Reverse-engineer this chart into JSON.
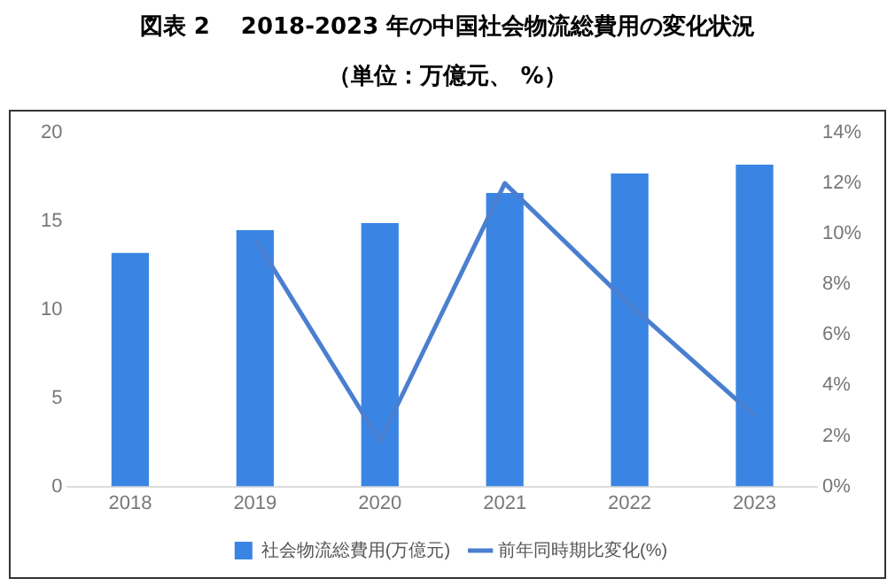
{
  "chart_data": {
    "type": "bar",
    "title": "図表 2　 2018-2023 年の中国社会物流総費用の変化状況",
    "subtitle": "（単位：万億元、 %）",
    "categories": [
      "2018",
      "2019",
      "2020",
      "2021",
      "2022",
      "2023"
    ],
    "series": [
      {
        "name": "社会物流総費用(万億元)",
        "color": "#3a85e3",
        "values": [
          13.2,
          14.5,
          14.9,
          16.6,
          17.7,
          18.2
        ]
      },
      {
        "name": "前年同時期比変化(%)",
        "type": "line",
        "axis": "y2",
        "color": "#4a7fd0",
        "values": [
          null,
          9.8,
          1.8,
          12.0,
          7.2,
          2.8
        ]
      }
    ],
    "ylim": [
      0,
      20
    ],
    "yticks": [
      0,
      5,
      10,
      15,
      20
    ],
    "y2lim": [
      0,
      14
    ],
    "y2ticks": [
      {
        "value": 0,
        "label": "0%"
      },
      {
        "value": 2,
        "label": "2%"
      },
      {
        "value": 4,
        "label": "4%"
      },
      {
        "value": 6,
        "label": "6%"
      },
      {
        "value": 8,
        "label": "8%"
      },
      {
        "value": 10,
        "label": "10%"
      },
      {
        "value": 12,
        "label": "12%"
      },
      {
        "value": 14,
        "label": "14%"
      }
    ],
    "grid": false,
    "legend": "bottom",
    "marker": "none"
  }
}
